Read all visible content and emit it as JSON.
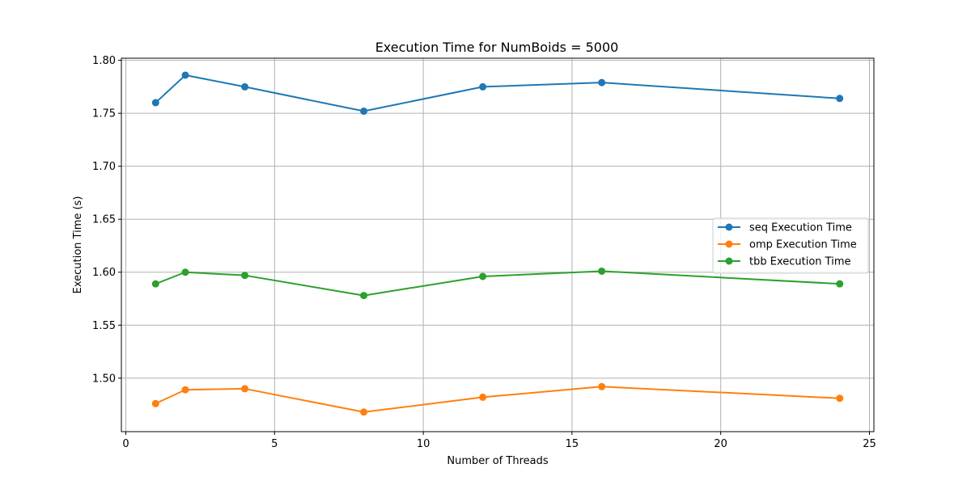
{
  "chart_data": {
    "type": "line",
    "title": "Execution Time for NumBoids = 5000",
    "xlabel": "Number of Threads",
    "ylabel": "Execution Time (s)",
    "x": [
      1,
      2,
      4,
      8,
      12,
      16,
      24
    ],
    "xlim": [
      -0.15,
      25.15
    ],
    "ylim": [
      1.4495,
      1.802
    ],
    "xticks": [
      0,
      5,
      10,
      15,
      20,
      25
    ],
    "xtick_labels": [
      "0",
      "5",
      "10",
      "15",
      "20",
      "25"
    ],
    "yticks": [
      1.5,
      1.55,
      1.6,
      1.65,
      1.7,
      1.75,
      1.8
    ],
    "ytick_labels": [
      "1.50",
      "1.55",
      "1.60",
      "1.65",
      "1.70",
      "1.75",
      "1.80"
    ],
    "grid": true,
    "legend_position": "center-right",
    "series": [
      {
        "name": "seq Execution Time",
        "color": "#1f77b4",
        "values": [
          1.76,
          1.786,
          1.775,
          1.752,
          1.775,
          1.779,
          1.764
        ]
      },
      {
        "name": "omp Execution Time",
        "color": "#ff7f0e",
        "values": [
          1.476,
          1.489,
          1.49,
          1.468,
          1.482,
          1.492,
          1.481
        ]
      },
      {
        "name": "tbb Execution Time",
        "color": "#2ca02c",
        "values": [
          1.589,
          1.6,
          1.597,
          1.578,
          1.596,
          1.601,
          1.589
        ]
      }
    ]
  }
}
